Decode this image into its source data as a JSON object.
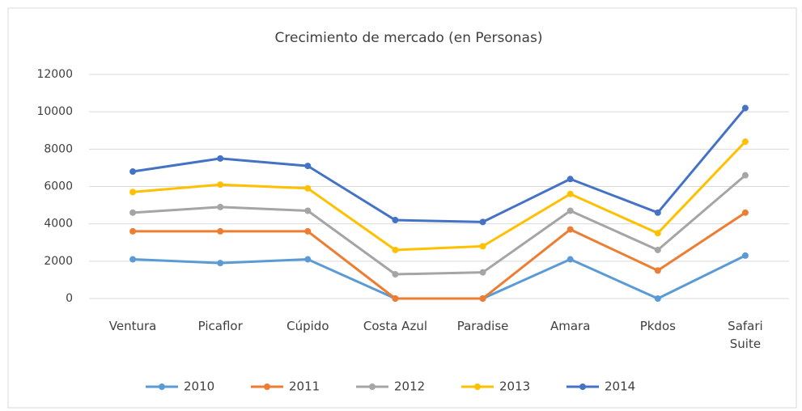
{
  "chart_data": {
    "type": "line",
    "title": "Crecimiento de mercado (en Personas)",
    "categories": [
      "Ventura",
      "Picaflor",
      "Cúpido",
      "Costa Azul",
      "Paradise",
      "Amara",
      "Pkdos",
      "Safari Suite"
    ],
    "series": [
      {
        "name": "2010",
        "color": "#5b9bd5",
        "values": [
          2100,
          1900,
          2100,
          0,
          0,
          2100,
          0,
          2300
        ]
      },
      {
        "name": "2011",
        "color": "#ed7d31",
        "values": [
          3600,
          3600,
          3600,
          0,
          0,
          3700,
          1500,
          4600
        ]
      },
      {
        "name": "2012",
        "color": "#a5a5a5",
        "values": [
          4600,
          4900,
          4700,
          1300,
          1400,
          4700,
          2600,
          6600
        ]
      },
      {
        "name": "2013",
        "color": "#ffc000",
        "values": [
          5700,
          6100,
          5900,
          2600,
          2800,
          5600,
          3500,
          8400
        ]
      },
      {
        "name": "2014",
        "color": "#4472c4",
        "values": [
          6800,
          7500,
          7100,
          4200,
          4100,
          6400,
          4600,
          10200
        ]
      }
    ],
    "ylim": [
      0,
      12000
    ],
    "yticks": [
      0,
      2000,
      4000,
      6000,
      8000,
      10000,
      12000
    ],
    "grid": true,
    "legend": "bottom"
  }
}
